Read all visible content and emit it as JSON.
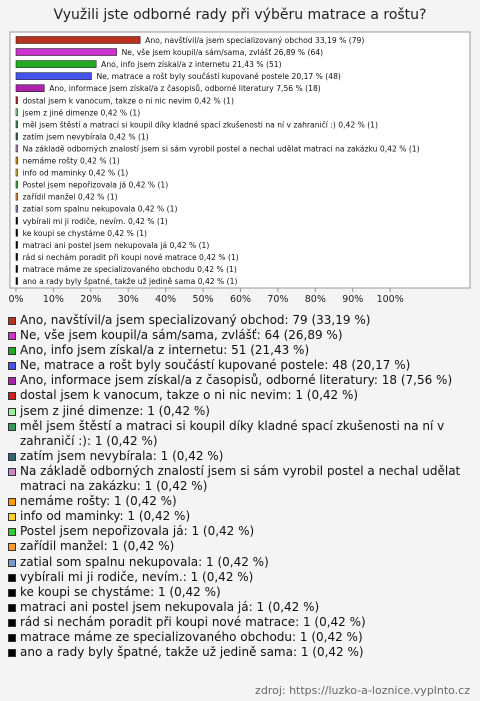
{
  "chart_data": {
    "type": "hbar",
    "title": "Využili jste odborné rady při výběru matrace a roštu?",
    "categories": [
      "Ano, navštívil/a jsem specializovaný obchod",
      "Ne, vše jsem koupil/a sám/sama, zvlášť",
      "Ano, info jsem získal/a z internetu",
      "Ne, matrace a rošt byly součástí kupované postele",
      "Ano, informace jsem získal/a z časopisů, odborné literatury",
      "dostal jsem k vanocum, takze o ni nic nevim",
      "jsem z jiné dimenze",
      "měl jsem štěstí a matraci si koupil díky kladné spací zkušenosti na ní v zahraničí :)",
      "zatím jsem nevybírala",
      "Na základě odborných znalostí jsem si sám vyrobil postel a nechal udělat matraci na zakázku",
      "nemáme rošty",
      "info od maminky",
      "Postel jsem nepořizovala já",
      "zařídil manžel",
      "zatial som spalnu nekupovala",
      "vybírali mi ji rodiče, nevím.",
      "ke koupi se chystáme",
      "matraci ani postel jsem nekupovala já",
      "rád si nechám poradit při koupi nové matrace",
      "matrace máme ze specializovaného obchodu",
      "ano a rady byly špatné, takže už jedině sama"
    ],
    "values": [
      33.19,
      26.89,
      21.43,
      20.17,
      7.56,
      0.42,
      0.42,
      0.42,
      0.42,
      0.42,
      0.42,
      0.42,
      0.42,
      0.42,
      0.42,
      0.42,
      0.42,
      0.42,
      0.42,
      0.42,
      0.42
    ],
    "value_labels": [
      "Ano, navštívil/a jsem specializovaný obchod 33,19 % (79)",
      "Ne, vše jsem koupil/a sám/sama, zvlášť 26,89 % (64)",
      "Ano, info jsem získal/a z internetu 21,43 % (51)",
      "Ne, matrace a rošt byly součástí kupované postele 20,17 % (48)",
      "Ano, informace jsem získal/a z časopisů, odborné literatury 7,56 % (18)",
      "dostal jsem k vanocum, takze o ni nic nevim 0,42 % (1)",
      "jsem z jiné dimenze 0,42 % (1)",
      "měl jsem štěstí a matraci si koupil díky kladné spací zkušenosti na ní v zahraničí :) 0,42 % (1)",
      "zatím jsem nevybírala 0,42 % (1)",
      "Na základě odborných znalostí jsem si sám vyrobil postel a nechal udělat matraci na zakázku 0,42 % (1)",
      "nemáme rošty 0,42 % (1)",
      "info od maminky 0,42 % (1)",
      "Postel jsem nepořizovala já 0,42 % (1)",
      "zařídil manžel 0,42 % (1)",
      "zatial som spalnu nekupovala 0,42 % (1)",
      "vybírali mi ji rodiče, nevím. 0,42 % (1)",
      "ke koupi se chystáme 0,42 % (1)",
      "matraci ani postel jsem nekupovala já 0,42 % (1)",
      "rád si nechám poradit při koupi nové matrace 0,42 % (1)",
      "matrace máme ze specializovaného obchodu 0,42 % (1)",
      "ano a rady byly špatné, takže už jedině sama 0,42 % (1)"
    ],
    "legend_labels": [
      "Ano, navštívil/a jsem specializovaný obchod: 79 (33,19 %)",
      "Ne, vše jsem koupil/a sám/sama, zvlášť: 64 (26,89 %)",
      "Ano, info jsem získal/a z internetu: 51 (21,43 %)",
      "Ne, matrace a rošt byly součástí kupované postele: 48 (20,17 %)",
      "Ano, informace jsem získal/a z časopisů, odborné literatury: 18 (7,56 %)",
      "dostal jsem k vanocum, takze o ni nic nevim: 1 (0,42 %)",
      "jsem z jiné dimenze: 1 (0,42 %)",
      "měl jsem štěstí a matraci si koupil díky kladné spací zkušenosti na ní v zahraničí :): 1 (0,42 %)",
      "zatím jsem nevybírala: 1 (0,42 %)",
      "Na základě odborných znalostí jsem si sám vyrobil postel a nechal udělat matraci na zakázku: 1 (0,42 %)",
      "nemáme rošty: 1 (0,42 %)",
      "info od maminky: 1 (0,42 %)",
      "Postel jsem nepořizovala já: 1 (0,42 %)",
      "zařídil manžel: 1 (0,42 %)",
      "zatial som spalnu nekupovala: 1 (0,42 %)",
      "vybírali mi ji rodiče, nevím.: 1 (0,42 %)",
      "ke koupi se chystáme: 1 (0,42 %)",
      "matraci ani postel jsem nekupovala já: 1 (0,42 %)",
      "rád si nechám poradit při koupi nové matrace: 1 (0,42 %)",
      "matrace máme ze specializovaného obchodu: 1 (0,42 %)",
      "ano a rady byly špatné, takže už jedině sama: 1 (0,42 %)"
    ],
    "colors": [
      "#b8321f",
      "#cc33cc",
      "#22aa22",
      "#4455ee",
      "#aa22aa",
      "#cc2222",
      "#99ee99",
      "#339955",
      "#336677",
      "#cc88cc",
      "#ff9900",
      "#ffcc33",
      "#33cc33",
      "#ff9933",
      "#7799cc",
      "#000000",
      "#000000",
      "#000000",
      "#000000",
      "#000000",
      "#000000"
    ],
    "xlim": [
      0,
      120
    ],
    "xticks": [
      {
        "value": 0,
        "label": "0%"
      },
      {
        "value": 10,
        "label": "10%"
      },
      {
        "value": 20,
        "label": "20%"
      },
      {
        "value": 30,
        "label": "30%"
      },
      {
        "value": 40,
        "label": "40%"
      },
      {
        "value": 50,
        "label": "50%"
      },
      {
        "value": 60,
        "label": "60%"
      },
      {
        "value": 70,
        "label": "70%"
      },
      {
        "value": 80,
        "label": "80%"
      },
      {
        "value": 90,
        "label": "90%"
      },
      {
        "value": 100,
        "label": "100%"
      }
    ],
    "source": "zdroj: https://luzko-a-loznice.vyplnto.cz"
  }
}
